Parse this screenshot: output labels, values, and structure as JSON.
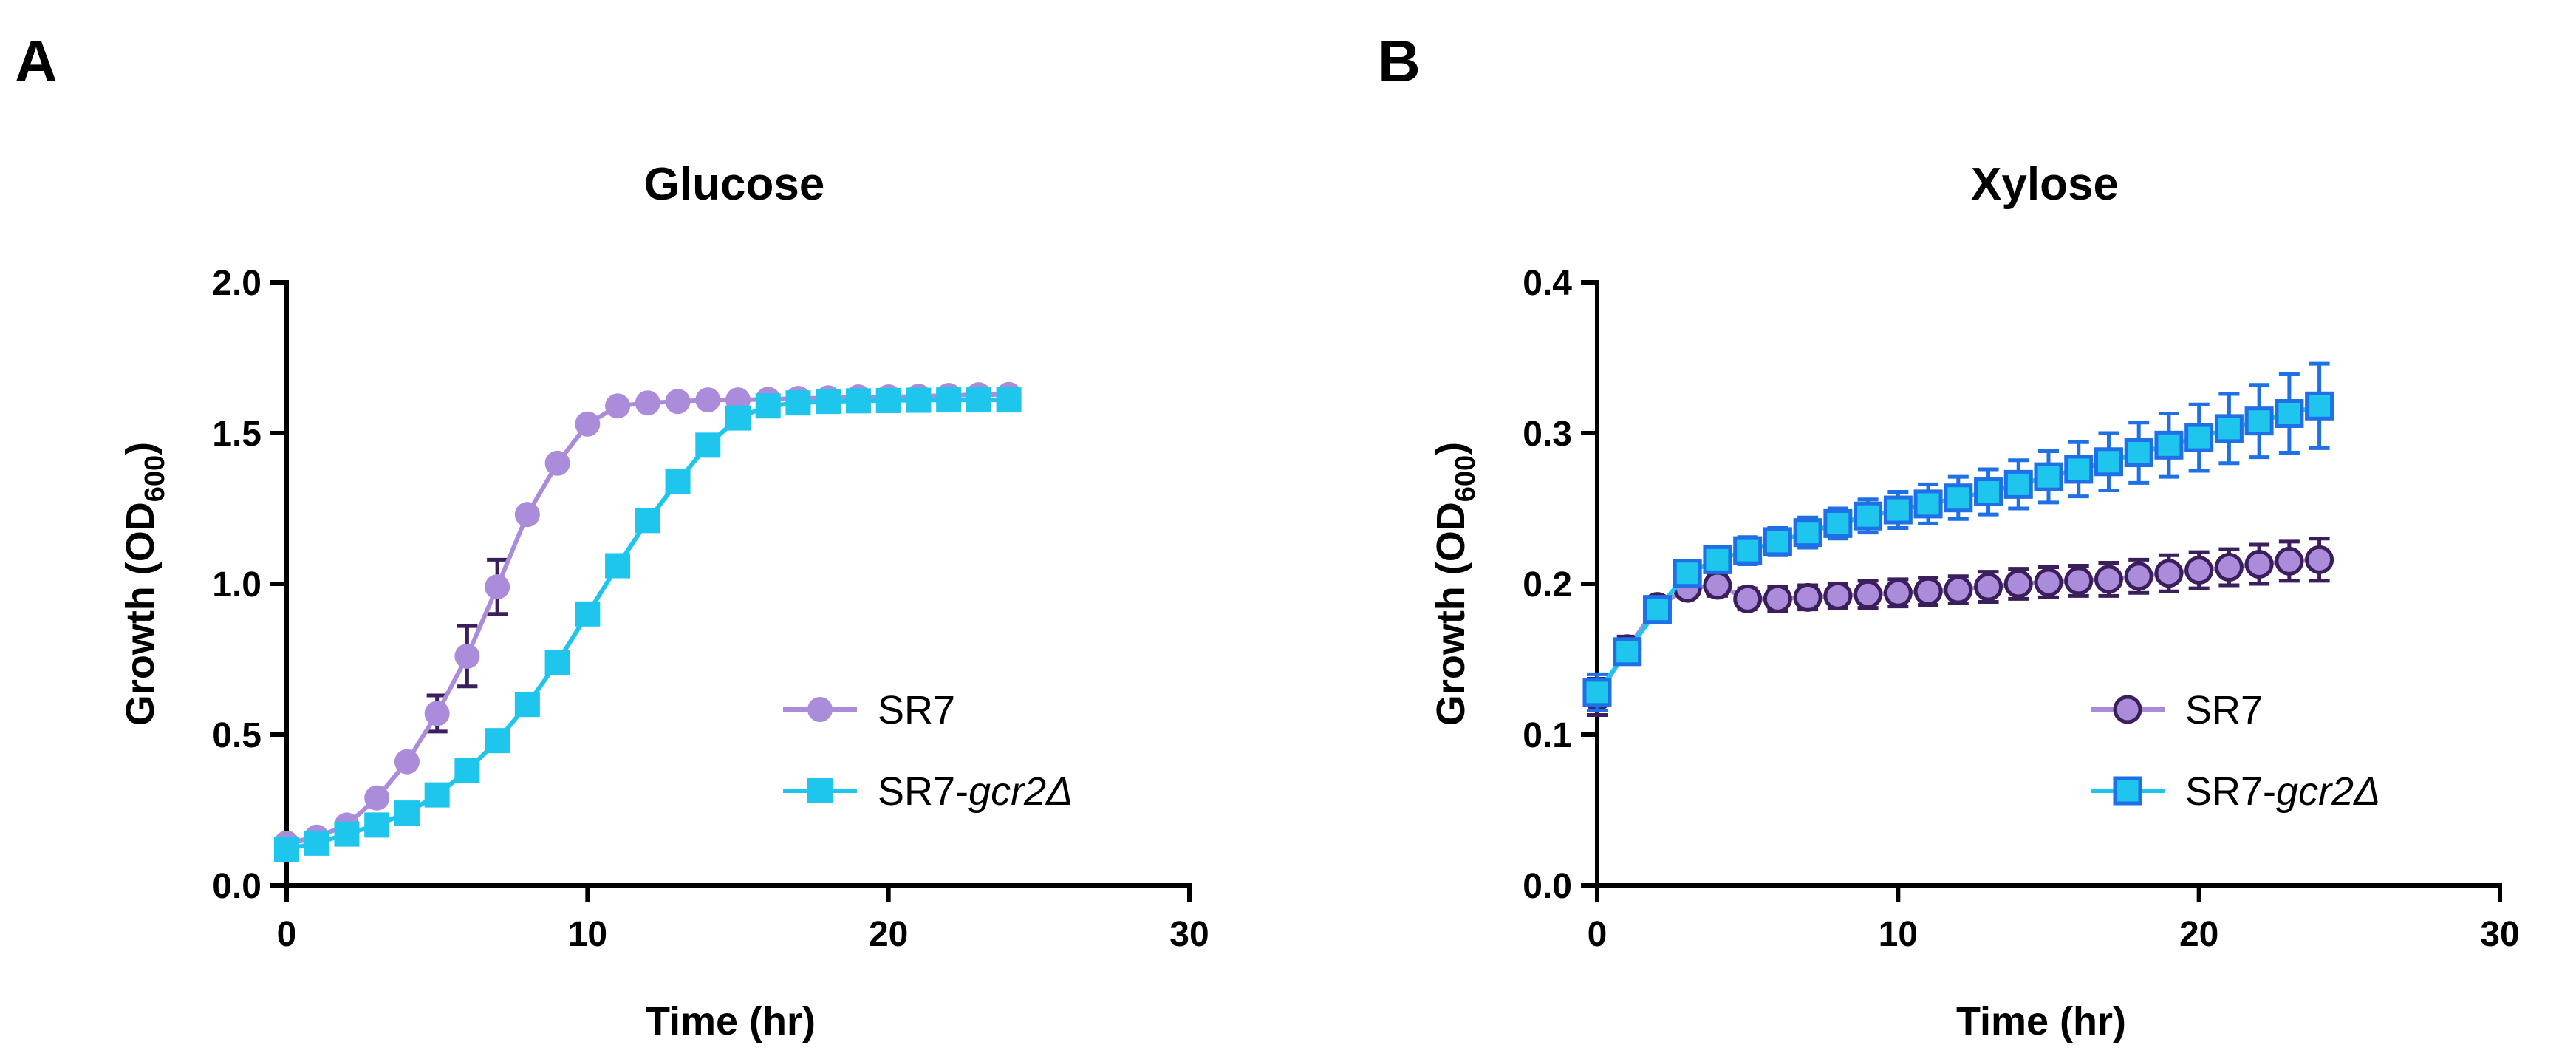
{
  "chart_data": [
    {
      "type": "line",
      "panel": "A",
      "title": "Glucose",
      "xlabel": "Time (hr)",
      "ylabel_main": "Growth (OD",
      "ylabel_sub": "600",
      "ylabel_end": ")",
      "xlim": [
        0,
        30
      ],
      "ylim": [
        0,
        2.0
      ],
      "xticks": [
        0,
        10,
        20,
        30
      ],
      "xtick_labels": [
        "0",
        "10",
        "20",
        "30"
      ],
      "yticks": [
        0,
        0.5,
        1.0,
        1.5,
        2.0
      ],
      "ytick_labels": [
        "0.0",
        "0.5",
        "1.0",
        "1.5",
        "2.0"
      ],
      "x": [
        0,
        1,
        2,
        3,
        4,
        5,
        6,
        7,
        8,
        9,
        10,
        11,
        12,
        13,
        14,
        15,
        16,
        17,
        18,
        19,
        20,
        21,
        22,
        23,
        24
      ],
      "series": [
        {
          "name": "SR7",
          "name_italic": "",
          "color": "#ab8cdb",
          "error_color": "#3b1f5c",
          "marker": "circle-filled",
          "values": [
            0.14,
            0.16,
            0.2,
            0.29,
            0.41,
            0.57,
            0.76,
            0.99,
            1.23,
            1.4,
            1.53,
            1.59,
            1.6,
            1.605,
            1.61,
            1.61,
            1.612,
            1.615,
            1.617,
            1.62,
            1.62,
            1.622,
            1.625,
            1.627,
            1.628
          ],
          "errors": [
            0,
            0,
            0,
            0,
            0,
            0.06,
            0.1,
            0.09,
            0,
            0,
            0,
            0,
            0,
            0,
            0,
            0,
            0,
            0,
            0,
            0,
            0,
            0,
            0,
            0,
            0
          ]
        },
        {
          "name": "SR7-",
          "name_italic": "gcr2Δ",
          "color": "#1ec5ec",
          "error_color": "#1ec5ec",
          "marker": "square-filled",
          "values": [
            0.12,
            0.14,
            0.17,
            0.2,
            0.24,
            0.3,
            0.38,
            0.48,
            0.6,
            0.74,
            0.9,
            1.06,
            1.21,
            1.34,
            1.46,
            1.55,
            1.59,
            1.6,
            1.605,
            1.607,
            1.608,
            1.609,
            1.61,
            1.61,
            1.61
          ],
          "errors": [
            0,
            0,
            0,
            0,
            0,
            0,
            0,
            0,
            0,
            0,
            0,
            0,
            0,
            0,
            0,
            0,
            0,
            0,
            0,
            0,
            0,
            0,
            0,
            0,
            0
          ]
        }
      ]
    },
    {
      "type": "line",
      "panel": "B",
      "title": "Xylose",
      "xlabel": "Time (hr)",
      "ylabel_main": "Growth (OD",
      "ylabel_sub": "600",
      "ylabel_end": ")",
      "xlim": [
        0,
        30
      ],
      "ylim": [
        0,
        0.4
      ],
      "xticks": [
        0,
        10,
        20,
        30
      ],
      "xtick_labels": [
        "0",
        "10",
        "20",
        "30"
      ],
      "yticks": [
        0,
        0.1,
        0.2,
        0.3,
        0.4
      ],
      "ytick_labels": [
        "0.0",
        "0.1",
        "0.2",
        "0.3",
        "0.4"
      ],
      "x": [
        0,
        1,
        2,
        3,
        4,
        5,
        6,
        7,
        8,
        9,
        10,
        11,
        12,
        13,
        14,
        15,
        16,
        17,
        18,
        19,
        20,
        21,
        22,
        23,
        24
      ],
      "series": [
        {
          "name": "SR7",
          "name_italic": "",
          "color": "#3b1f5c",
          "error_color": "#3b1f5c",
          "marker": "circle-open",
          "fill": "#ab8cdb",
          "values": [
            0.125,
            0.157,
            0.185,
            0.197,
            0.199,
            0.19,
            0.19,
            0.191,
            0.192,
            0.193,
            0.194,
            0.195,
            0.196,
            0.198,
            0.2,
            0.201,
            0.202,
            0.203,
            0.205,
            0.207,
            0.209,
            0.211,
            0.213,
            0.215,
            0.216
          ],
          "errors": [
            0.012,
            0.008,
            0.006,
            0.006,
            0.007,
            0.007,
            0.008,
            0.008,
            0.008,
            0.009,
            0.009,
            0.009,
            0.009,
            0.01,
            0.01,
            0.01,
            0.01,
            0.011,
            0.011,
            0.012,
            0.012,
            0.012,
            0.013,
            0.013,
            0.014
          ]
        },
        {
          "name": "SR7-",
          "name_italic": "gcr2Δ",
          "color": "#1f6fe6",
          "error_color": "#1f6fe6",
          "marker": "square-open",
          "fill": "#1ec5ec",
          "values": [
            0.128,
            0.155,
            0.183,
            0.207,
            0.216,
            0.222,
            0.228,
            0.234,
            0.24,
            0.245,
            0.249,
            0.253,
            0.257,
            0.261,
            0.266,
            0.271,
            0.276,
            0.281,
            0.287,
            0.292,
            0.297,
            0.303,
            0.308,
            0.313,
            0.318
          ],
          "errors": [
            0.012,
            0.008,
            0.008,
            0.008,
            0.008,
            0.009,
            0.009,
            0.01,
            0.01,
            0.011,
            0.012,
            0.013,
            0.014,
            0.015,
            0.016,
            0.017,
            0.018,
            0.019,
            0.02,
            0.021,
            0.022,
            0.023,
            0.024,
            0.026,
            0.028
          ]
        }
      ]
    }
  ]
}
